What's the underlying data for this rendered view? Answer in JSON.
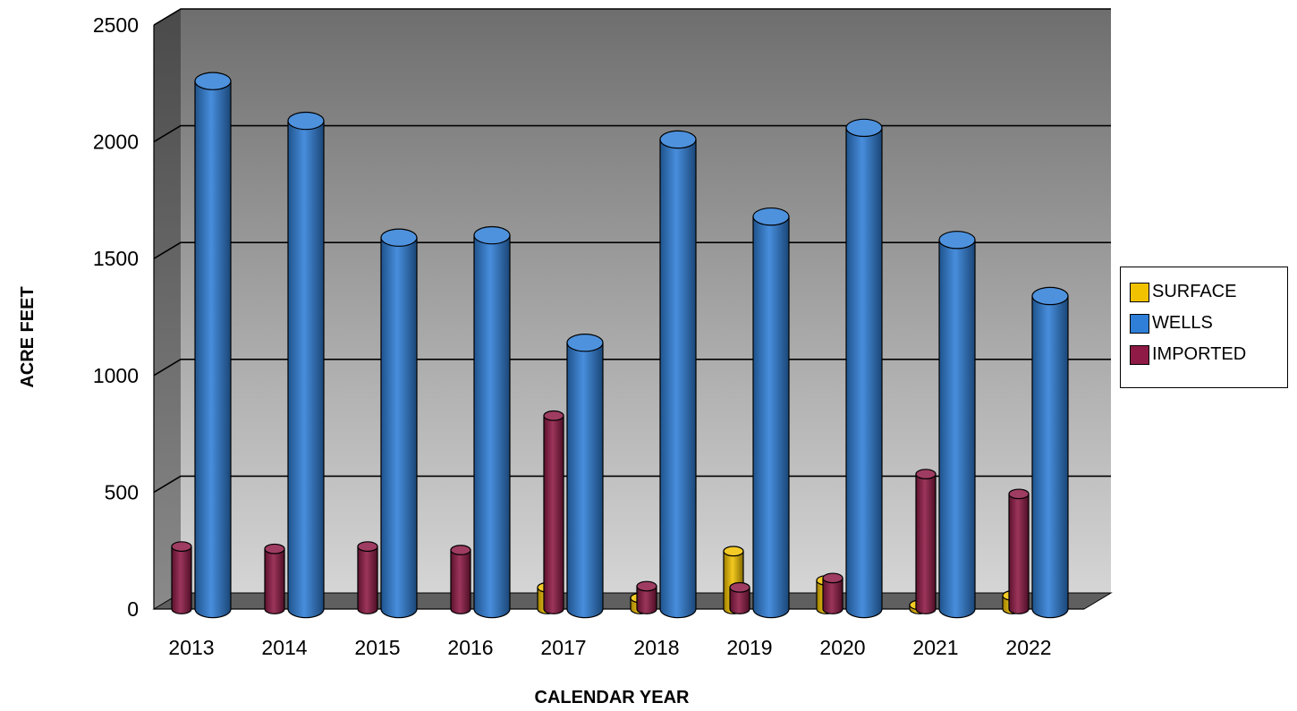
{
  "chart_data": {
    "type": "bar",
    "style": "3d-cylinder",
    "title": "",
    "xlabel": "CALENDAR YEAR",
    "ylabel": "ACRE FEET",
    "ylim": [
      0,
      2500
    ],
    "yticks": [
      "0",
      "500",
      "1000",
      "1500",
      "2000",
      "2500"
    ],
    "grid": true,
    "legend_position": "right",
    "categories": [
      "2013",
      "2014",
      "2015",
      "2016",
      "2017",
      "2018",
      "2019",
      "2020",
      "2021",
      "2022"
    ],
    "series": [
      {
        "name": "SURFACE",
        "color": "#F2C200",
        "values": [
          0,
          0,
          0,
          0,
          85,
          40,
          240,
          115,
          10,
          50
        ]
      },
      {
        "name": "WELLS",
        "color": "#2F7FD8",
        "values": [
          2260,
          2090,
          1590,
          1600,
          1140,
          2010,
          1680,
          2060,
          1580,
          1340
        ]
      },
      {
        "name": "IMPORTED",
        "color": "#8E1A45",
        "values": [
          260,
          250,
          260,
          245,
          820,
          90,
          85,
          125,
          570,
          485
        ]
      }
    ]
  }
}
